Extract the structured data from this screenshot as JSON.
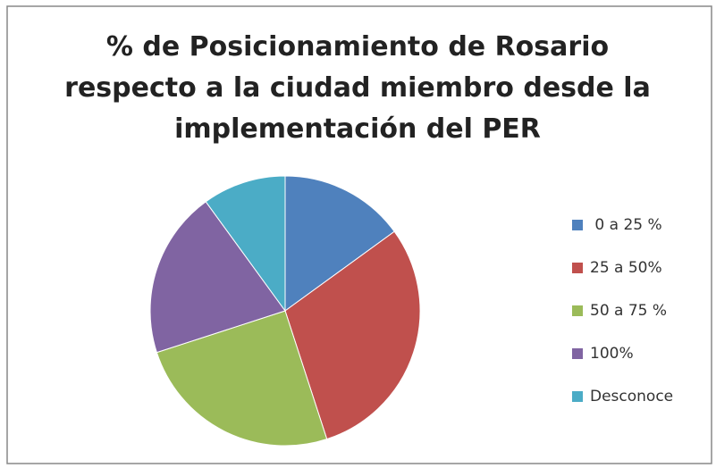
{
  "chart_data": {
    "type": "pie",
    "title": [
      "% de Posicionamiento de Rosario",
      "respecto a la ciudad miembro desde la",
      "implementación del PER"
    ],
    "categories": [
      " 0 a 25 %",
      "25 a 50%",
      "50 a 75 %",
      "100%",
      "Desconoce"
    ],
    "values": [
      15,
      30,
      25,
      20,
      10
    ],
    "colors": [
      "#4f81bd",
      "#c0504d",
      "#9bbb59",
      "#8064a2",
      "#4bacc6"
    ],
    "legend": "right"
  }
}
